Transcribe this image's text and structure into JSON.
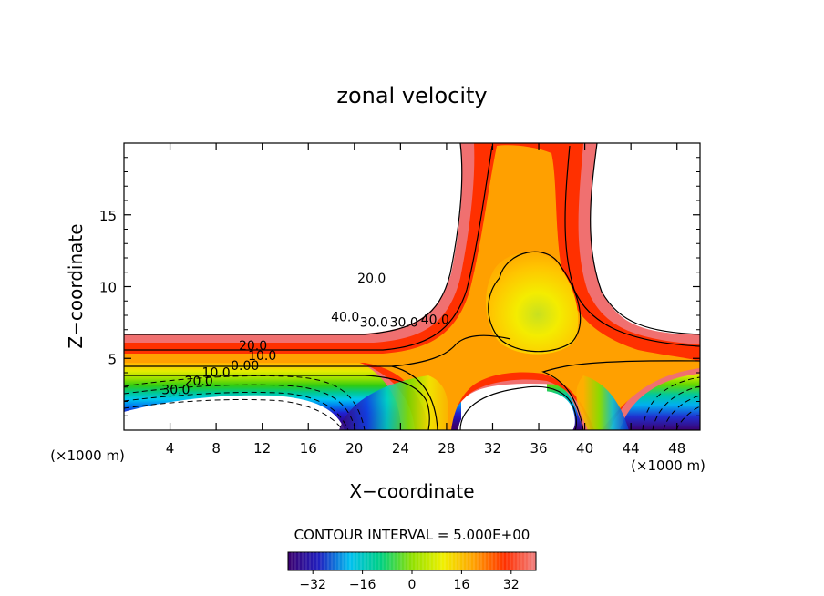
{
  "chart_data": {
    "type": "heatmap",
    "title": "zonal velocity",
    "xlabel": "X−coordinate",
    "ylabel": "Z−coordinate",
    "x_unit_left": "(×1000 m)",
    "x_unit_right": "(×1000 m)",
    "xlim": [
      0,
      50
    ],
    "ylim": [
      0,
      20
    ],
    "x_ticks": [
      {
        "value": 4,
        "label": "4"
      },
      {
        "value": 8,
        "label": "8"
      },
      {
        "value": 12,
        "label": "12"
      },
      {
        "value": 16,
        "label": "16"
      },
      {
        "value": 20,
        "label": "20"
      },
      {
        "value": 24,
        "label": "24"
      },
      {
        "value": 28,
        "label": "28"
      },
      {
        "value": 32,
        "label": "32"
      },
      {
        "value": 36,
        "label": "36"
      },
      {
        "value": 40,
        "label": "40"
      },
      {
        "value": 44,
        "label": "44"
      },
      {
        "value": 48,
        "label": "48"
      }
    ],
    "y_ticks": [
      {
        "value": 5,
        "label": "5"
      },
      {
        "value": 10,
        "label": "10"
      },
      {
        "value": 15,
        "label": "15"
      }
    ],
    "contour_interval_text": "CONTOUR INTERVAL = 5.000E+00",
    "contour_labels": [
      {
        "text": "40.0",
        "x": 19.2,
        "y": 7.6
      },
      {
        "text": "30.0",
        "x": 21.7,
        "y": 7.2
      },
      {
        "text": "20.0",
        "x": 21.5,
        "y": 10.3
      },
      {
        "text": "30.0",
        "x": 24.3,
        "y": 7.2
      },
      {
        "text": "40.0",
        "x": 27.0,
        "y": 7.4
      },
      {
        "text": "20.0",
        "x": 11.2,
        "y": 5.6
      },
      {
        "text": "10.0",
        "x": 12.0,
        "y": 4.9
      },
      {
        "text": "0.00",
        "x": 10.5,
        "y": 4.2
      },
      {
        "text": "10.0",
        "x": 8.0,
        "y": 3.7
      },
      {
        "text": "20.0",
        "x": 6.5,
        "y": 3.1
      },
      {
        "text": "30.0",
        "x": 4.5,
        "y": 2.5
      }
    ],
    "colorbar": {
      "min": -40,
      "max": 40,
      "tick_labels": [
        "−32",
        "−16",
        "0",
        "16",
        "32"
      ],
      "tick_values": [
        -32,
        -16,
        0,
        16,
        32
      ],
      "colors": [
        "#3b006e",
        "#2020c0",
        "#00c0f0",
        "#00d080",
        "#90e000",
        "#f0f000",
        "#ffa000",
        "#ff3000",
        "#f08080"
      ]
    }
  }
}
